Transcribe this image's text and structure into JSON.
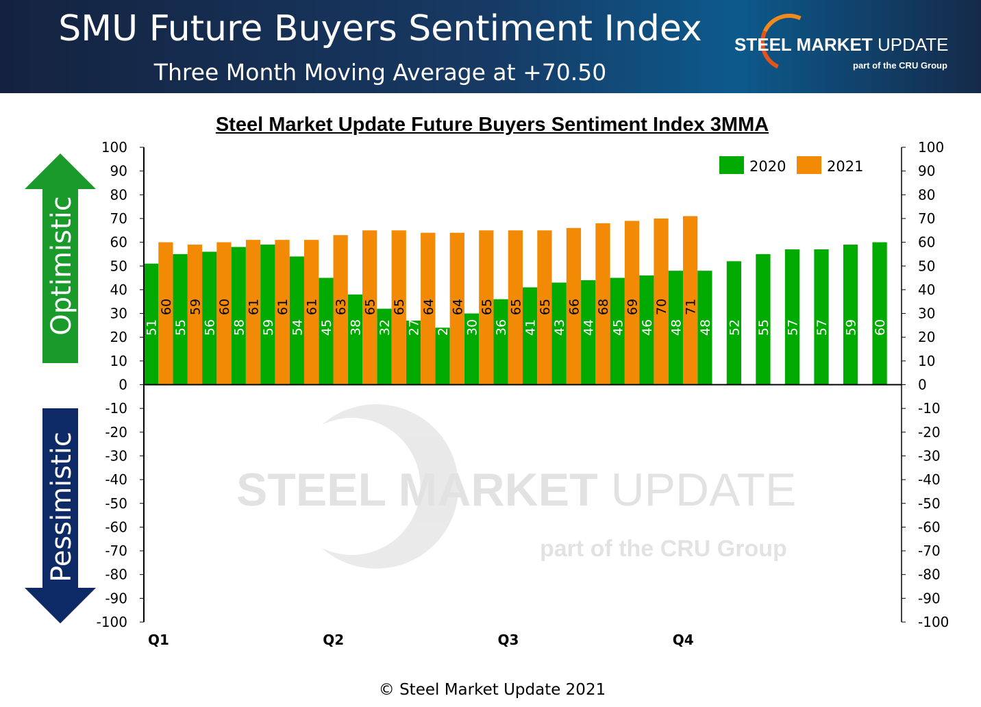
{
  "header": {
    "title": "SMU Future Buyers Sentiment Index",
    "subtitle": "Three Month Moving Average at +70.50",
    "logo_main_bold": "STEEL MARKET",
    "logo_main": " UPDATE",
    "logo_sub": "part of the CRU Group"
  },
  "side": {
    "up": "Optimistic",
    "down": "Pessimistic"
  },
  "footer": "© Steel Market Update 2021",
  "colors": {
    "2020": "#00aa00",
    "2021": "#f28a05",
    "header": "#173a64"
  },
  "chart_data": {
    "type": "bar",
    "title": "Steel Market Update Future Buyers Sentiment Index 3MMA",
    "ylim": [
      -100,
      100
    ],
    "yticks": [
      100,
      90,
      80,
      70,
      60,
      50,
      40,
      30,
      20,
      10,
      0,
      -10,
      -20,
      -30,
      -40,
      -50,
      -60,
      -70,
      -80,
      -90,
      -100
    ],
    "quarter_labels": [
      "Q1",
      "Q2",
      "Q3",
      "Q4"
    ],
    "legend_position": "top-right",
    "series": [
      {
        "name": "2020",
        "values": [
          51,
          55,
          56,
          58,
          59,
          54,
          45,
          38,
          32,
          27,
          24,
          30,
          36,
          41,
          43,
          44,
          45,
          46,
          48,
          48,
          52,
          55,
          57,
          57,
          59,
          60
        ]
      },
      {
        "name": "2021",
        "values": [
          60,
          59,
          60,
          61,
          61,
          61,
          63,
          65,
          65,
          64,
          64,
          65,
          65,
          65,
          66,
          68,
          69,
          70,
          71
        ]
      }
    ]
  }
}
